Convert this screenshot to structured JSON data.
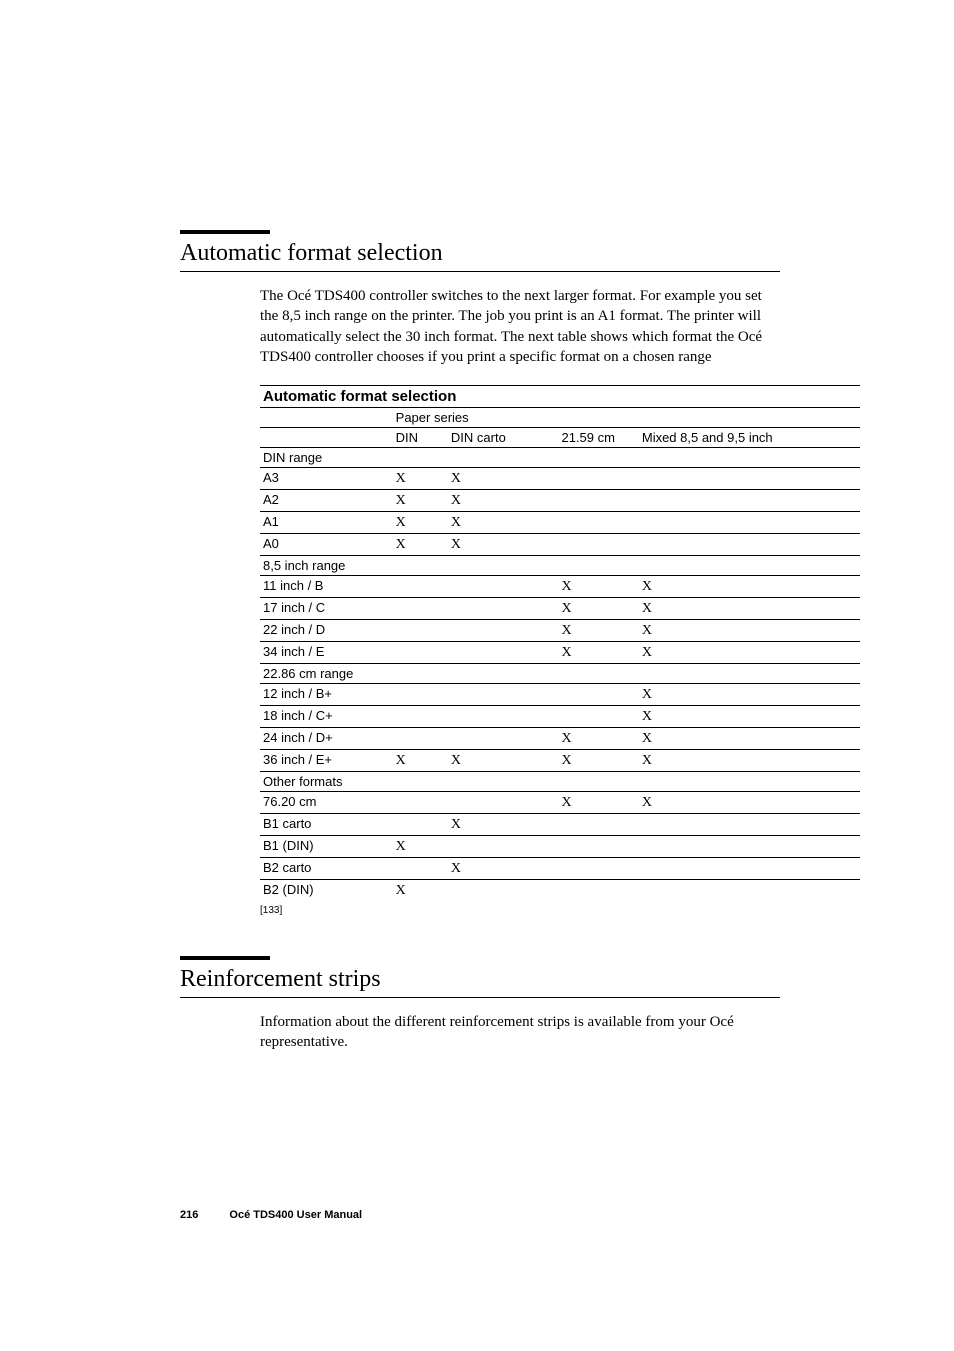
{
  "section1": {
    "title": "Automatic format selection",
    "paragraph": "The Océ TDS400 controller switches to the next larger format. For example you set the 8,5 inch range on the printer. The job you print is an A1 format. The printer will automatically select the 30 inch format. The next table shows which format the Océ TDS400 controller chooses if you print a specific format on a chosen range"
  },
  "table": {
    "title": "Automatic format selection",
    "paper_series_label": "Paper series",
    "headers": {
      "c2": "DIN",
      "c3": "DIN carto",
      "c4": "21.59 cm",
      "c5": "Mixed 8,5 and 9,5 inch"
    },
    "rows": [
      {
        "c1": "DIN range",
        "c2": "",
        "c3": "",
        "c4": "",
        "c5": ""
      },
      {
        "c1": "A3",
        "c2": "X",
        "c3": "X",
        "c4": "",
        "c5": ""
      },
      {
        "c1": "A2",
        "c2": "X",
        "c3": "X",
        "c4": "",
        "c5": ""
      },
      {
        "c1": "A1",
        "c2": "X",
        "c3": "X",
        "c4": "",
        "c5": ""
      },
      {
        "c1": "A0",
        "c2": "X",
        "c3": "X",
        "c4": "",
        "c5": ""
      },
      {
        "c1": "8,5 inch range",
        "c2": "",
        "c3": "",
        "c4": "",
        "c5": ""
      },
      {
        "c1": "11 inch / B",
        "c2": "",
        "c3": "",
        "c4": "X",
        "c5": "X"
      },
      {
        "c1": "17 inch / C",
        "c2": "",
        "c3": "",
        "c4": "X",
        "c5": "X"
      },
      {
        "c1": "22 inch / D",
        "c2": "",
        "c3": "",
        "c4": "X",
        "c5": "X"
      },
      {
        "c1": "34 inch / E",
        "c2": "",
        "c3": "",
        "c4": "X",
        "c5": "X"
      },
      {
        "c1": "22.86 cm range",
        "c2": "",
        "c3": "",
        "c4": "",
        "c5": ""
      },
      {
        "c1": "12 inch / B+",
        "c2": "",
        "c3": "",
        "c4": "",
        "c5": "X"
      },
      {
        "c1": "18 inch / C+",
        "c2": "",
        "c3": "",
        "c4": "",
        "c5": "X"
      },
      {
        "c1": "24 inch / D+",
        "c2": "",
        "c3": "",
        "c4": "X",
        "c5": "X"
      },
      {
        "c1": "36 inch / E+",
        "c2": "X",
        "c3": "X",
        "c4": "X",
        "c5": "X"
      },
      {
        "c1": "Other formats",
        "c2": "",
        "c3": "",
        "c4": "",
        "c5": ""
      },
      {
        "c1": "76.20 cm",
        "c2": "",
        "c3": "",
        "c4": "X",
        "c5": "X"
      },
      {
        "c1": "B1 carto",
        "c2": "",
        "c3": "X",
        "c4": "",
        "c5": ""
      },
      {
        "c1": "B1 (DIN)",
        "c2": "X",
        "c3": "",
        "c4": "",
        "c5": ""
      },
      {
        "c1": "B2 carto",
        "c2": "",
        "c3": "X",
        "c4": "",
        "c5": ""
      },
      {
        "c1": "B2 (DIN)",
        "c2": "X",
        "c3": "",
        "c4": "",
        "c5": ""
      }
    ],
    "caption": "[133]"
  },
  "section2": {
    "title": "Reinforcement strips",
    "paragraph": "Information about the different reinforcement strips is available from your Océ representative."
  },
  "footer": {
    "page": "216",
    "doc": "Océ TDS400 User Manual"
  }
}
